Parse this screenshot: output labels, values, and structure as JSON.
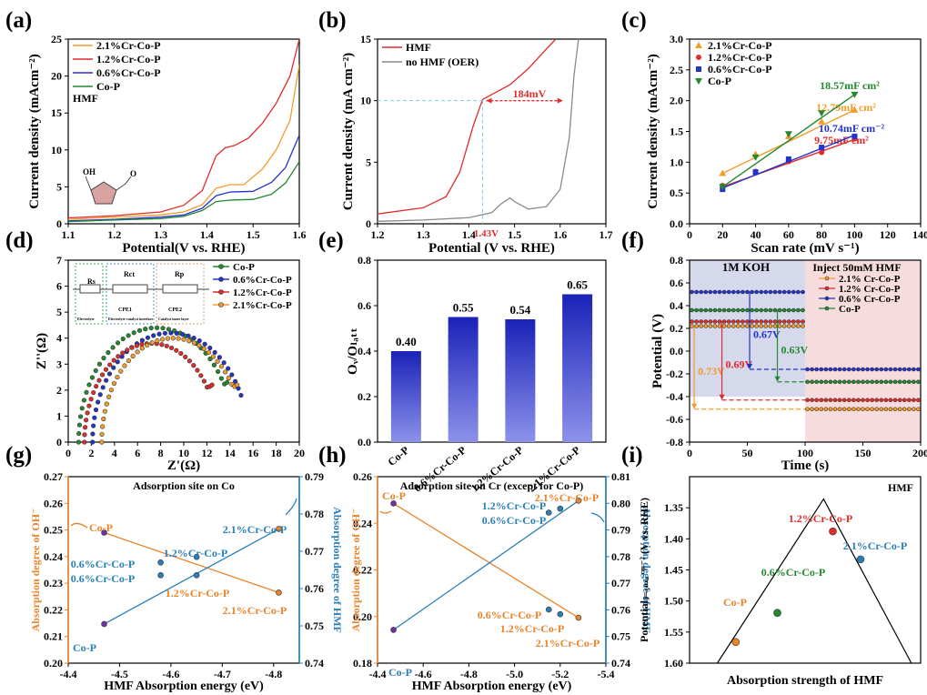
{
  "colors": {
    "p21": "#f39c2a",
    "p12": "#e22b2b",
    "p06": "#2233cc",
    "co": "#22892f",
    "gray": "#8a8a8a",
    "orange": "#e8842a",
    "blue": "#2a7fb8",
    "lightblue": "#84cbea"
  },
  "chart_data": [
    {
      "id": "a",
      "panel": "(a)",
      "type": "line",
      "xlabel": "Potential(V vs. RHE)",
      "ylabel": "Current density (mAcm⁻²)",
      "xlim": [
        1.1,
        1.6
      ],
      "ylim": [
        0,
        25
      ],
      "xticks": [
        "1.1",
        "1.2",
        "1.3",
        "1.4",
        "1.5",
        "1.6"
      ],
      "yticks": [
        "0",
        "5",
        "10",
        "15",
        "20",
        "25"
      ],
      "note": "HMF",
      "oh_label": "OH",
      "series": [
        {
          "name": "2.1%Cr-Co-P",
          "color": "#f39c2a",
          "x": [
            1.1,
            1.2,
            1.3,
            1.35,
            1.39,
            1.42,
            1.45,
            1.48,
            1.52,
            1.55,
            1.58,
            1.6
          ],
          "y": [
            0.6,
            0.9,
            1.2,
            1.6,
            2.6,
            4.8,
            5.3,
            5.3,
            7.4,
            10.0,
            14.0,
            21.5
          ]
        },
        {
          "name": "1.2%Cr-Co-P",
          "color": "#e22b2b",
          "x": [
            1.1,
            1.2,
            1.3,
            1.35,
            1.39,
            1.42,
            1.44,
            1.46,
            1.49,
            1.52,
            1.55,
            1.58,
            1.6
          ],
          "y": [
            0.8,
            1.1,
            1.6,
            2.5,
            4.5,
            9.2,
            10.3,
            10.6,
            11.6,
            13.6,
            16.3,
            20.0,
            25.0
          ]
        },
        {
          "name": "0.6%Cr-Co-P",
          "color": "#2233cc",
          "x": [
            1.1,
            1.2,
            1.3,
            1.35,
            1.39,
            1.42,
            1.45,
            1.5,
            1.54,
            1.57,
            1.6
          ],
          "y": [
            0.4,
            0.6,
            0.9,
            1.2,
            2.1,
            3.8,
            4.3,
            4.4,
            5.6,
            7.6,
            12.0
          ]
        },
        {
          "name": "Co-P",
          "color": "#22892f",
          "x": [
            1.1,
            1.2,
            1.3,
            1.35,
            1.39,
            1.42,
            1.45,
            1.5,
            1.54,
            1.57,
            1.6
          ],
          "y": [
            0.3,
            0.5,
            0.7,
            1.0,
            1.8,
            3.0,
            3.2,
            3.3,
            4.0,
            5.5,
            8.4
          ]
        }
      ]
    },
    {
      "id": "b",
      "panel": "(b)",
      "type": "line",
      "xlabel": "Potential (V vs. RHE)",
      "ylabel": "Current density (mA cm⁻²)",
      "xlim": [
        1.2,
        1.7
      ],
      "ylim": [
        0,
        15
      ],
      "xticks": [
        "1.2",
        "1.3",
        "1.4",
        "1.5",
        "1.6",
        "1.7"
      ],
      "yticks": [
        "0",
        "5",
        "10",
        "15"
      ],
      "annotations": [
        "184mV",
        "1.43V"
      ],
      "series": [
        {
          "name": "HMF",
          "color": "#e22b2b",
          "x": [
            1.2,
            1.3,
            1.35,
            1.38,
            1.41,
            1.43,
            1.45,
            1.49,
            1.53,
            1.56,
            1.59
          ],
          "y": [
            0.8,
            1.3,
            2.2,
            4.2,
            8.0,
            10.1,
            10.5,
            11.3,
            12.6,
            13.8,
            15.0
          ]
        },
        {
          "name": "no HMF (OER)",
          "color": "#8a8a8a",
          "x": [
            1.2,
            1.3,
            1.4,
            1.45,
            1.47,
            1.49,
            1.5,
            1.53,
            1.57,
            1.6,
            1.62,
            1.63,
            1.64
          ],
          "y": [
            0.2,
            0.3,
            0.5,
            0.9,
            1.6,
            2.1,
            1.8,
            1.2,
            1.4,
            2.8,
            7.0,
            12.0,
            15.0
          ]
        }
      ]
    },
    {
      "id": "c",
      "panel": "(c)",
      "type": "scatter",
      "xlabel": "Scan rate (mV s⁻¹)",
      "ylabel": "Current density (mAcm⁻²)",
      "xlim": [
        0,
        140
      ],
      "ylim": [
        0,
        3.0
      ],
      "xticks": [
        "0",
        "20",
        "40",
        "60",
        "80",
        "100",
        "120",
        "140"
      ],
      "yticks": [
        "0.0",
        "0.5",
        "1.0",
        "1.5",
        "2.0",
        "2.5",
        "3.0"
      ],
      "series": [
        {
          "name": "2.1%Cr-Co-P",
          "color": "#f39c2a",
          "marker": "tri-up",
          "x": [
            20,
            40,
            60,
            80,
            100
          ],
          "y": [
            0.82,
            1.13,
            1.42,
            1.66,
            1.85
          ],
          "fit": [
            0.82,
            1.85
          ],
          "label": "12.79mF cm²"
        },
        {
          "name": "1.2%Cr-Co-P",
          "color": "#e22b2b",
          "marker": "circle",
          "x": [
            20,
            40,
            60,
            80,
            100
          ],
          "y": [
            0.62,
            0.85,
            1.01,
            1.16,
            1.38
          ],
          "fit": [
            0.6,
            1.37
          ],
          "label": "9.75mF cm²"
        },
        {
          "name": "0.6%Cr-Co-P",
          "color": "#2233cc",
          "marker": "square",
          "x": [
            20,
            40,
            60,
            80,
            100
          ],
          "y": [
            0.56,
            0.84,
            1.05,
            1.24,
            1.42
          ],
          "fit": [
            0.58,
            1.44
          ],
          "label": "10.74mF cm⁻²"
        },
        {
          "name": "Co-P",
          "color": "#22892f",
          "marker": "tri-down",
          "x": [
            20,
            40,
            60,
            80,
            100
          ],
          "y": [
            0.6,
            1.08,
            1.46,
            1.8,
            2.1
          ],
          "fit": [
            0.6,
            2.1
          ],
          "label": "18.57mF cm²"
        }
      ]
    },
    {
      "id": "d",
      "panel": "(d)",
      "type": "scatter",
      "xlabel": "Z'(Ω)",
      "ylabel": "Z''(Ω)",
      "xlim": [
        0,
        20
      ],
      "ylim": [
        0,
        7
      ],
      "xticks": [
        "0",
        "2",
        "4",
        "6",
        "8",
        "10",
        "12",
        "14",
        "16",
        "18",
        "20"
      ],
      "yticks": [
        "0",
        "1",
        "2",
        "3",
        "4",
        "5",
        "6",
        "7"
      ],
      "inset_labels": [
        "Rs",
        "Rct",
        "CPE1",
        "Rp",
        "CPE2",
        "Electrolyte",
        "Electrolyte-catalyst interface",
        "Catalyst inner layer"
      ],
      "series": [
        {
          "name": "Co-P",
          "color": "#22892f",
          "x0": 0.9,
          "x1": 14.4,
          "peak": 4.4,
          "y_end": 2.3
        },
        {
          "name": "0.6%Cr-Co-P",
          "color": "#2233cc",
          "x0": 2.1,
          "x1": 15.6,
          "peak": 4.2,
          "y_end": 1.8
        },
        {
          "name": "1.2%Cr-Co-P",
          "color": "#e22b2b",
          "x0": 1.4,
          "x1": 13.0,
          "peak": 3.8,
          "y_end": 2.2
        },
        {
          "name": "2.1%Cr-Co-P",
          "color": "#f39c2a",
          "x0": 2.9,
          "x1": 15.2,
          "peak": 4.0,
          "y_end": 2.2
        }
      ]
    },
    {
      "id": "e",
      "panel": "(e)",
      "type": "bar",
      "xlabel": "",
      "ylabel": "Oᵥ/Oₗₐₜₜ",
      "ylim": [
        0,
        0.8
      ],
      "yticks": [
        "0.0",
        "0.2",
        "0.4",
        "0.6",
        "0.8"
      ],
      "categories": [
        "Co-P",
        "0.6%Cr-Co-P",
        "1.2%Cr-Co-P",
        "2.1%Cr-Co-P"
      ],
      "values": [
        0.4,
        0.55,
        0.54,
        0.65
      ],
      "value_labels": [
        "0.40",
        "0.55",
        "0.54",
        "0.65"
      ]
    },
    {
      "id": "f",
      "panel": "(f)",
      "type": "line",
      "xlabel": "Time (s)",
      "ylabel": "Potential (V)",
      "xlim": [
        0,
        200
      ],
      "ylim": [
        -0.8,
        0.8
      ],
      "xticks": [
        "0",
        "50",
        "100",
        "150",
        "200"
      ],
      "yticks": [
        "-0.8",
        "-0.6",
        "-0.4",
        "-0.2",
        "0.0",
        "0.2",
        "0.4",
        "0.6",
        "0.8"
      ],
      "region_labels": [
        "1M KOH",
        "Inject 50mM HMF"
      ],
      "series": [
        {
          "name": "2.1% Cr-Co-P",
          "color": "#f39c2a",
          "before": 0.22,
          "after": -0.51,
          "drop": "0.73V",
          "drop_x": 4
        },
        {
          "name": "1.2% Cr-Co-P",
          "color": "#e22b2b",
          "before": 0.26,
          "after": -0.43,
          "drop": "0.69V",
          "drop_x": 28
        },
        {
          "name": "0.6% Cr-Co-P",
          "color": "#2233cc",
          "before": 0.52,
          "after": -0.16,
          "drop": "0.67V",
          "drop_x": 52
        },
        {
          "name": "Co-P",
          "color": "#22892f",
          "before": 0.36,
          "after": -0.27,
          "drop": "0.63V",
          "drop_x": 76
        }
      ]
    },
    {
      "id": "g",
      "panel": "(g)",
      "type": "scatter",
      "title": "Adsorption site on Co",
      "xlabel": "HMF Absorption energy (eV)",
      "ylabel": "Absorption degree of OH⁻",
      "y2label": "Absorption degree of HMF",
      "xlim": [
        -4.4,
        -4.85
      ],
      "ylim": [
        0.2,
        0.27
      ],
      "y2lim": [
        0.74,
        0.79
      ],
      "xticks": [
        "-4.4",
        "-4.5",
        "-4.6",
        "-4.7",
        "-4.8"
      ],
      "yticks": [
        "0.20",
        "0.21",
        "0.22",
        "0.23",
        "0.24",
        "0.25",
        "0.26",
        "0.27"
      ],
      "y2ticks": [
        "0.74",
        "0.75",
        "0.76",
        "0.77",
        "0.78",
        "0.79"
      ],
      "labels": [
        "Co-P",
        "0.6%Cr-Co-P",
        "0.6%Cr-Co-P",
        "1.2%Cr-Co-P",
        "1.2%Cr-Co-P",
        "2.1%Cr-Co-P",
        "2.1%Cr-Co-P",
        "Co-P"
      ],
      "oh_points": {
        "x": [
          -4.47,
          -4.58,
          -4.65,
          -4.81
        ],
        "y": [
          0.249,
          0.233,
          0.233,
          0.2265
        ]
      },
      "hmf_points": {
        "x": [
          -4.47,
          -4.58,
          -4.65,
          -4.81
        ],
        "y2": [
          0.7505,
          0.767,
          0.7685,
          0.776
        ]
      }
    },
    {
      "id": "h",
      "panel": "(h)",
      "type": "scatter",
      "title": "Adsorption site on Cr (except for Co-P)",
      "xlabel": "HMF Absorption energy (eV)",
      "ylabel": "Absorption degree of OH⁻",
      "y2label": "Absorption degree of HMF",
      "xlim": [
        -4.4,
        -5.4
      ],
      "ylim": [
        0.18,
        0.26
      ],
      "y2lim": [
        0.74,
        0.81
      ],
      "xticks": [
        "-4.4",
        "-4.6",
        "-4.8",
        "-5.0",
        "-5.2",
        "-5.4"
      ],
      "yticks": [
        "0.18",
        "0.20",
        "0.22",
        "0.24",
        "0.26"
      ],
      "y2ticks": [
        "0.74",
        "0.75",
        "0.76",
        "0.77",
        "0.78",
        "0.79",
        "0.80",
        "0.81"
      ],
      "labels": [
        "Co-P",
        "2.1%Cr-Co-P",
        "1.2%Cr-Co-P",
        "0.6%Cr-Co-P",
        "0.6%Cr-Co-P",
        "1.2%Cr-Co-P",
        "2.1%Cr-Co-P",
        "Co-P"
      ],
      "oh_points": {
        "x": [
          -4.47,
          -5.15,
          -5.2,
          -5.28
        ],
        "y": [
          0.2485,
          0.203,
          0.201,
          0.1995
        ]
      },
      "hmf_points": {
        "x": [
          -4.47,
          -5.15,
          -5.2,
          -5.28
        ],
        "y2": [
          0.7525,
          0.7965,
          0.798,
          0.801
        ]
      }
    },
    {
      "id": "i",
      "panel": "(i)",
      "type": "scatter",
      "title": "HMF",
      "xlabel": "Absorption strength of HMF",
      "ylabel": "Potentialⱼ₌₅ₘₐ ᶜᵐ⁻² (V vs. RHE)",
      "ylim": [
        1.6,
        1.3
      ],
      "yticks": [
        "1.35",
        "1.40",
        "1.45",
        "1.50",
        "1.55",
        "1.60"
      ],
      "points": [
        {
          "name": "Co-P",
          "x": 0.2,
          "y": 1.566,
          "color": "#e8842a"
        },
        {
          "name": "0.6%Cr-Co-P",
          "x": 0.38,
          "y": 1.519,
          "color": "#22892f"
        },
        {
          "name": "1.2%Cr-Co-P",
          "x": 0.62,
          "y": 1.388,
          "color": "#e22b2b"
        },
        {
          "name": "2.1%Cr-Co-P",
          "x": 0.74,
          "y": 1.433,
          "color": "#2a7fb8"
        }
      ]
    }
  ]
}
